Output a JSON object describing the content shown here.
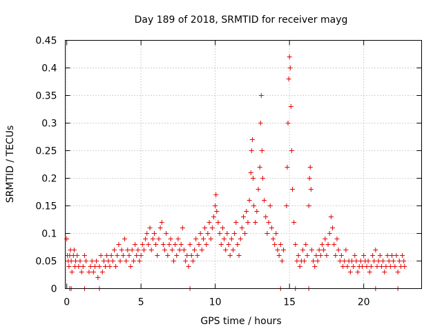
{
  "chart_data": {
    "type": "scatter",
    "title": "Day 189 of 2018, SRMTID for receiver mayg",
    "xlabel": "GPS time / hours",
    "ylabel": "SRMTID / TECUs",
    "xlim": [
      -0.1,
      23.9
    ],
    "ylim": [
      0,
      0.45
    ],
    "xticks": [
      0,
      5,
      10,
      15,
      20
    ],
    "xtick_labels": [
      "0",
      "5",
      "10",
      "15",
      "20"
    ],
    "yticks": [
      0,
      0.05,
      0.1,
      0.15,
      0.2,
      0.25,
      0.3,
      0.35,
      0.4,
      0.45
    ],
    "ytick_labels": [
      "0",
      "0.05",
      "0.1",
      "0.15",
      "0.2",
      "0.25",
      "0.3",
      "0.35",
      "0.4",
      "0.45"
    ],
    "grid": true,
    "marker": "plus",
    "color": "#e00000",
    "series": [
      {
        "name": "SRMTID",
        "points": [
          [
            0.0,
            0.09
          ],
          [
            0.05,
            0.06
          ],
          [
            0.1,
            0.05
          ],
          [
            0.15,
            0.04
          ],
          [
            0.2,
            0.06
          ],
          [
            0.25,
            0.07
          ],
          [
            0.3,
            0.05
          ],
          [
            0.35,
            0.03
          ],
          [
            0.45,
            0.06
          ],
          [
            0.5,
            0.07
          ],
          [
            0.55,
            0.04
          ],
          [
            0.6,
            0.05
          ],
          [
            0.7,
            0.06
          ],
          [
            0.8,
            0.04
          ],
          [
            0.9,
            0.05
          ],
          [
            1.0,
            0.03
          ],
          [
            1.1,
            0.04
          ],
          [
            1.2,
            0.06
          ],
          [
            1.3,
            0.05
          ],
          [
            1.5,
            0.03
          ],
          [
            1.6,
            0.04
          ],
          [
            1.7,
            0.05
          ],
          [
            1.8,
            0.03
          ],
          [
            1.9,
            0.04
          ],
          [
            2.0,
            0.05
          ],
          [
            2.1,
            0.02
          ],
          [
            2.2,
            0.04
          ],
          [
            2.3,
            0.06
          ],
          [
            2.4,
            0.03
          ],
          [
            2.5,
            0.05
          ],
          [
            2.6,
            0.04
          ],
          [
            2.7,
            0.06
          ],
          [
            2.8,
            0.05
          ],
          [
            2.9,
            0.04
          ],
          [
            3.0,
            0.06
          ],
          [
            3.1,
            0.05
          ],
          [
            3.2,
            0.07
          ],
          [
            3.3,
            0.04
          ],
          [
            3.4,
            0.06
          ],
          [
            3.5,
            0.08
          ],
          [
            3.6,
            0.05
          ],
          [
            3.7,
            0.07
          ],
          [
            3.8,
            0.06
          ],
          [
            3.9,
            0.09
          ],
          [
            4.0,
            0.05
          ],
          [
            4.1,
            0.07
          ],
          [
            4.2,
            0.06
          ],
          [
            4.3,
            0.04
          ],
          [
            4.4,
            0.07
          ],
          [
            4.5,
            0.05
          ],
          [
            4.6,
            0.08
          ],
          [
            4.7,
            0.06
          ],
          [
            4.8,
            0.07
          ],
          [
            4.9,
            0.05
          ],
          [
            5.0,
            0.06
          ],
          [
            5.1,
            0.08
          ],
          [
            5.2,
            0.07
          ],
          [
            5.3,
            0.09
          ],
          [
            5.4,
            0.1
          ],
          [
            5.5,
            0.08
          ],
          [
            5.6,
            0.11
          ],
          [
            5.7,
            0.07
          ],
          [
            5.8,
            0.09
          ],
          [
            5.9,
            0.1
          ],
          [
            6.0,
            0.08
          ],
          [
            6.1,
            0.06
          ],
          [
            6.2,
            0.09
          ],
          [
            6.3,
            0.11
          ],
          [
            6.4,
            0.12
          ],
          [
            6.5,
            0.08
          ],
          [
            6.6,
            0.07
          ],
          [
            6.7,
            0.1
          ],
          [
            6.8,
            0.06
          ],
          [
            6.9,
            0.08
          ],
          [
            7.0,
            0.09
          ],
          [
            7.1,
            0.07
          ],
          [
            7.2,
            0.05
          ],
          [
            7.3,
            0.08
          ],
          [
            7.4,
            0.06
          ],
          [
            7.5,
            0.09
          ],
          [
            7.6,
            0.07
          ],
          [
            7.7,
            0.08
          ],
          [
            7.8,
            0.11
          ],
          [
            7.9,
            0.07
          ],
          [
            8.0,
            0.05
          ],
          [
            8.1,
            0.06
          ],
          [
            8.2,
            0.04
          ],
          [
            8.3,
            0.08
          ],
          [
            8.4,
            0.06
          ],
          [
            8.5,
            0.05
          ],
          [
            8.6,
            0.07
          ],
          [
            8.7,
            0.09
          ],
          [
            8.8,
            0.06
          ],
          [
            8.9,
            0.08
          ],
          [
            9.0,
            0.1
          ],
          [
            9.1,
            0.07
          ],
          [
            9.2,
            0.09
          ],
          [
            9.3,
            0.11
          ],
          [
            9.4,
            0.08
          ],
          [
            9.5,
            0.1
          ],
          [
            9.6,
            0.12
          ],
          [
            9.7,
            0.09
          ],
          [
            9.8,
            0.11
          ],
          [
            9.9,
            0.13
          ],
          [
            10.0,
            0.15
          ],
          [
            10.05,
            0.17
          ],
          [
            10.1,
            0.14
          ],
          [
            10.2,
            0.12
          ],
          [
            10.3,
            0.1
          ],
          [
            10.4,
            0.08
          ],
          [
            10.5,
            0.11
          ],
          [
            10.6,
            0.09
          ],
          [
            10.7,
            0.07
          ],
          [
            10.8,
            0.1
          ],
          [
            10.9,
            0.08
          ],
          [
            11.0,
            0.06
          ],
          [
            11.1,
            0.09
          ],
          [
            11.2,
            0.07
          ],
          [
            11.3,
            0.1
          ],
          [
            11.4,
            0.12
          ],
          [
            11.5,
            0.08
          ],
          [
            11.6,
            0.06
          ],
          [
            11.7,
            0.09
          ],
          [
            11.8,
            0.11
          ],
          [
            11.9,
            0.13
          ],
          [
            12.0,
            0.1
          ],
          [
            12.1,
            0.14
          ],
          [
            12.2,
            0.12
          ],
          [
            12.3,
            0.16
          ],
          [
            12.4,
            0.21
          ],
          [
            12.45,
            0.25
          ],
          [
            12.5,
            0.27
          ],
          [
            12.55,
            0.2
          ],
          [
            12.6,
            0.15
          ],
          [
            12.7,
            0.12
          ],
          [
            12.8,
            0.14
          ],
          [
            12.9,
            0.18
          ],
          [
            13.0,
            0.22
          ],
          [
            13.05,
            0.3
          ],
          [
            13.1,
            0.35
          ],
          [
            13.15,
            0.25
          ],
          [
            13.2,
            0.2
          ],
          [
            13.3,
            0.16
          ],
          [
            13.4,
            0.13
          ],
          [
            13.5,
            0.1
          ],
          [
            13.6,
            0.12
          ],
          [
            13.7,
            0.15
          ],
          [
            13.8,
            0.11
          ],
          [
            13.9,
            0.09
          ],
          [
            14.0,
            0.08
          ],
          [
            14.1,
            0.1
          ],
          [
            14.2,
            0.07
          ],
          [
            14.3,
            0.06
          ],
          [
            14.4,
            0.08
          ],
          [
            14.5,
            0.05
          ],
          [
            14.6,
            0.07
          ],
          [
            14.8,
            0.15
          ],
          [
            14.85,
            0.22
          ],
          [
            14.9,
            0.3
          ],
          [
            14.95,
            0.38
          ],
          [
            15.0,
            0.42
          ],
          [
            15.05,
            0.4
          ],
          [
            15.1,
            0.33
          ],
          [
            15.15,
            0.25
          ],
          [
            15.2,
            0.18
          ],
          [
            15.3,
            0.12
          ],
          [
            15.4,
            0.08
          ],
          [
            15.5,
            0.05
          ],
          [
            15.6,
            0.06
          ],
          [
            15.7,
            0.04
          ],
          [
            15.8,
            0.05
          ],
          [
            15.9,
            0.07
          ],
          [
            16.0,
            0.05
          ],
          [
            16.1,
            0.08
          ],
          [
            16.2,
            0.06
          ],
          [
            16.3,
            0.15
          ],
          [
            16.35,
            0.2
          ],
          [
            16.4,
            0.22
          ],
          [
            16.45,
            0.18
          ],
          [
            16.5,
            0.07
          ],
          [
            16.6,
            0.05
          ],
          [
            16.7,
            0.04
          ],
          [
            16.8,
            0.06
          ],
          [
            16.9,
            0.05
          ],
          [
            17.0,
            0.07
          ],
          [
            17.1,
            0.06
          ],
          [
            17.2,
            0.08
          ],
          [
            17.3,
            0.07
          ],
          [
            17.4,
            0.09
          ],
          [
            17.5,
            0.06
          ],
          [
            17.6,
            0.08
          ],
          [
            17.7,
            0.1
          ],
          [
            17.8,
            0.13
          ],
          [
            17.9,
            0.11
          ],
          [
            18.0,
            0.08
          ],
          [
            18.1,
            0.06
          ],
          [
            18.2,
            0.09
          ],
          [
            18.3,
            0.07
          ],
          [
            18.4,
            0.05
          ],
          [
            18.5,
            0.06
          ],
          [
            18.6,
            0.04
          ],
          [
            18.7,
            0.05
          ],
          [
            18.8,
            0.07
          ],
          [
            18.9,
            0.04
          ],
          [
            19.0,
            0.05
          ],
          [
            19.1,
            0.03
          ],
          [
            19.2,
            0.05
          ],
          [
            19.3,
            0.04
          ],
          [
            19.4,
            0.06
          ],
          [
            19.5,
            0.05
          ],
          [
            19.6,
            0.03
          ],
          [
            19.7,
            0.04
          ],
          [
            19.8,
            0.05
          ],
          [
            19.9,
            0.04
          ],
          [
            20.0,
            0.06
          ],
          [
            20.1,
            0.05
          ],
          [
            20.2,
            0.04
          ],
          [
            20.3,
            0.05
          ],
          [
            20.4,
            0.03
          ],
          [
            20.5,
            0.04
          ],
          [
            20.6,
            0.06
          ],
          [
            20.7,
            0.05
          ],
          [
            20.8,
            0.07
          ],
          [
            20.9,
            0.04
          ],
          [
            21.0,
            0.05
          ],
          [
            21.1,
            0.06
          ],
          [
            21.2,
            0.04
          ],
          [
            21.3,
            0.05
          ],
          [
            21.4,
            0.03
          ],
          [
            21.5,
            0.04
          ],
          [
            21.6,
            0.06
          ],
          [
            21.7,
            0.05
          ],
          [
            21.8,
            0.04
          ],
          [
            21.9,
            0.06
          ],
          [
            22.0,
            0.05
          ],
          [
            22.1,
            0.04
          ],
          [
            22.2,
            0.06
          ],
          [
            22.3,
            0.03
          ],
          [
            22.4,
            0.05
          ],
          [
            22.5,
            0.04
          ],
          [
            22.6,
            0.06
          ],
          [
            22.7,
            0.05
          ],
          [
            22.75,
            0.04
          ],
          [
            0.2,
            0.0
          ],
          [
            0.3,
            0.0
          ],
          [
            1.2,
            0.0
          ],
          [
            2.2,
            0.0
          ],
          [
            8.3,
            0.0
          ],
          [
            14.4,
            0.0
          ],
          [
            15.4,
            0.0
          ],
          [
            16.3,
            0.0
          ],
          [
            20.8,
            0.0
          ],
          [
            22.3,
            0.0
          ]
        ]
      }
    ]
  }
}
